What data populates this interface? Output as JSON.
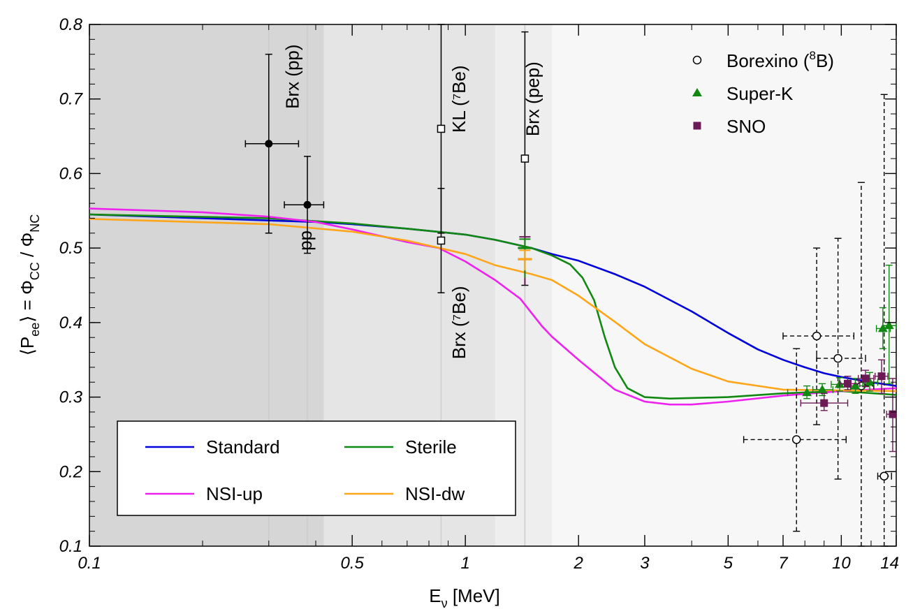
{
  "chart_data": {
    "type": "line",
    "xlabel": "E",
    "xlabel_sub": "ν",
    "xlabel_unit": " [MeV]",
    "ylabel_parts": [
      "⟨P",
      "ee",
      "⟩ = Φ",
      "CC",
      " / Φ",
      "NC"
    ],
    "xscale": "log",
    "xlim": [
      0.1,
      14
    ],
    "ylim": [
      0.1,
      0.8
    ],
    "x_ticks": [
      0.1,
      0.5,
      1,
      2,
      3,
      5,
      7,
      10,
      14
    ],
    "x_tick_labels": [
      "0.1",
      "0.5",
      "1",
      "2",
      "3",
      "5",
      "7",
      "10",
      "14"
    ],
    "y_ticks": [
      0.1,
      0.2,
      0.3,
      0.4,
      0.5,
      0.6,
      0.7,
      0.8
    ],
    "y_tick_labels": [
      "0.1",
      "0.2",
      "0.3",
      "0.4",
      "0.5",
      "0.6",
      "0.7",
      "0.8"
    ],
    "shaded_bands": [
      {
        "x": [
          0.1,
          0.42
        ],
        "color": "#d6d6d6"
      },
      {
        "x": [
          0.1,
          1.2
        ],
        "color": "#e5e5e5"
      },
      {
        "x": [
          0.1,
          1.7
        ],
        "color": "#eeeeee"
      },
      {
        "x": [
          0.1,
          14
        ],
        "color": "#f7f7f7"
      }
    ],
    "series": [
      {
        "name": "Standard",
        "color": "#0000dd",
        "x": [
          0.1,
          0.2,
          0.3,
          0.4,
          0.5,
          0.7,
          1.0,
          1.2,
          1.5,
          1.7,
          2.0,
          2.5,
          3.0,
          4.0,
          5.0,
          6.0,
          7.0,
          8.0,
          9.0,
          10.0,
          12.0,
          14.0
        ],
        "y": [
          0.545,
          0.54,
          0.537,
          0.535,
          0.532,
          0.526,
          0.518,
          0.511,
          0.5,
          0.492,
          0.483,
          0.465,
          0.448,
          0.415,
          0.386,
          0.364,
          0.35,
          0.34,
          0.332,
          0.327,
          0.32,
          0.315
        ]
      },
      {
        "name": "Sterile",
        "color": "#118811",
        "x": [
          0.1,
          0.3,
          0.5,
          0.7,
          1.0,
          1.2,
          1.5,
          1.7,
          1.9,
          2.05,
          2.2,
          2.35,
          2.5,
          2.7,
          3.0,
          3.5,
          5.0,
          7.0,
          10.0,
          14.0
        ],
        "y": [
          0.545,
          0.54,
          0.533,
          0.526,
          0.518,
          0.511,
          0.5,
          0.49,
          0.478,
          0.46,
          0.43,
          0.38,
          0.34,
          0.312,
          0.3,
          0.298,
          0.3,
          0.305,
          0.308,
          0.303
        ]
      },
      {
        "name": "NSI-up",
        "color": "#ee22ee",
        "x": [
          0.1,
          0.2,
          0.3,
          0.4,
          0.5,
          0.7,
          0.85,
          1.0,
          1.2,
          1.4,
          1.6,
          1.7,
          2.0,
          2.5,
          3.0,
          3.5,
          4.0,
          5.0,
          7.0,
          10.0,
          14.0
        ],
        "y": [
          0.553,
          0.548,
          0.542,
          0.535,
          0.525,
          0.508,
          0.5,
          0.482,
          0.457,
          0.432,
          0.395,
          0.381,
          0.35,
          0.31,
          0.294,
          0.29,
          0.29,
          0.294,
          0.302,
          0.308,
          0.312
        ]
      },
      {
        "name": "NSI-dw",
        "color": "#ffa51a",
        "x": [
          0.1,
          0.3,
          0.5,
          0.7,
          1.0,
          1.2,
          1.5,
          1.7,
          2.0,
          2.5,
          3.0,
          4.0,
          5.0,
          7.0,
          10.0,
          14.0
        ],
        "y": [
          0.539,
          0.532,
          0.522,
          0.51,
          0.492,
          0.477,
          0.465,
          0.457,
          0.436,
          0.401,
          0.371,
          0.338,
          0.321,
          0.31,
          0.309,
          0.308
        ]
      }
    ],
    "points": [
      {
        "x": 0.3,
        "y": 0.64,
        "yerr": [
          0.12,
          0.12
        ],
        "xerr": [
          0.04,
          0.06
        ],
        "marker": "filled-circle",
        "color": "#000000"
      },
      {
        "x": 0.38,
        "y": 0.558,
        "yerr": [
          0.065,
          0.065
        ],
        "xerr": [
          0.05,
          0.04
        ],
        "marker": "filled-circle",
        "color": "#000000"
      },
      {
        "x": 0.862,
        "y": 0.66,
        "yerr": [
          0.14,
          0.14
        ],
        "marker": "open-square",
        "color": "#000000"
      },
      {
        "x": 0.862,
        "y": 0.51,
        "yerr": [
          0.07,
          0.07
        ],
        "marker": "open-square",
        "color": "#000000"
      },
      {
        "x": 1.44,
        "y": 0.62,
        "yerr": [
          0.17,
          0.17
        ],
        "marker": "open-square",
        "color": "#000000"
      }
    ],
    "range_markers": [
      {
        "x": 1.44,
        "y": [
          0.515,
          0.45
        ],
        "y_center": 0.485,
        "color": "#6b1a55"
      },
      {
        "x": 1.44,
        "y": [
          0.512,
          0.46
        ],
        "y_center": 0.5,
        "color": "#118811"
      },
      {
        "x": 1.44,
        "y": [
          0.497,
          0.47
        ],
        "y_center": 0.485,
        "color": "#ffa51a"
      }
    ],
    "band_labels": [
      {
        "text": "Brx (pp)",
        "x": 0.36,
        "y": 0.73,
        "rotate": -90
      },
      {
        "text": "pp",
        "x": 0.39,
        "y": 0.51,
        "rotate": -90
      },
      {
        "text": "KL (⁷Be)",
        "x": 1.0,
        "y": 0.7,
        "rotate": -90
      },
      {
        "text": "Brx (⁷Be)",
        "x": 1.0,
        "y": 0.4,
        "rotate": -90
      },
      {
        "text": "Brx (pep)",
        "x": 1.57,
        "y": 0.7,
        "rotate": -90
      }
    ],
    "datasets": [
      {
        "name": "Borexino (",
        "name_sup": "8",
        "name_tail": "B)",
        "marker": "open-circle",
        "color": "#000000",
        "line": "dashed",
        "points": [
          {
            "x": 7.6,
            "y": 0.243,
            "xlo": 5.5,
            "xhi": 10.3,
            "ylo": 0.12,
            "yhi": 0.365
          },
          {
            "x": 8.6,
            "y": 0.382,
            "xlo": 7.0,
            "xhi": 10.8,
            "ylo": 0.263,
            "yhi": 0.5
          },
          {
            "x": 9.8,
            "y": 0.352,
            "xlo": 8.6,
            "xhi": 11.6,
            "ylo": 0.19,
            "yhi": 0.513
          },
          {
            "x": 11.3,
            "y": 0.315,
            "xlo": 10.6,
            "xhi": 12.2,
            "ylo": 0.1,
            "yhi": 0.588
          },
          {
            "x": 13.0,
            "y": 0.194,
            "xlo": 12.5,
            "xhi": 13.6,
            "ylo": 0.1,
            "yhi": 0.706
          }
        ]
      },
      {
        "name": "Super-K",
        "marker": "filled-triangle",
        "color": "#118811",
        "line": "solid",
        "points": [
          {
            "x": 8.1,
            "y": 0.306,
            "xlo": 7.2,
            "xhi": 8.9,
            "ylo": 0.298,
            "yhi": 0.315
          },
          {
            "x": 8.9,
            "y": 0.31,
            "xlo": 8.4,
            "xhi": 9.5,
            "ylo": 0.302,
            "yhi": 0.318
          },
          {
            "x": 9.9,
            "y": 0.317,
            "xlo": 9.4,
            "xhi": 10.5,
            "ylo": 0.308,
            "yhi": 0.326
          },
          {
            "x": 10.9,
            "y": 0.315,
            "xlo": 10.4,
            "xhi": 11.5,
            "ylo": 0.305,
            "yhi": 0.325
          },
          {
            "x": 11.9,
            "y": 0.32,
            "xlo": 11.4,
            "xhi": 12.5,
            "ylo": 0.308,
            "yhi": 0.333
          },
          {
            "x": 12.9,
            "y": 0.392,
            "xlo": 12.4,
            "xhi": 13.5,
            "ylo": 0.365,
            "yhi": 0.42
          },
          {
            "x": 13.4,
            "y": 0.396,
            "xlo": 12.9,
            "xhi": 14.0,
            "ylo": 0.318,
            "yhi": 0.477
          }
        ]
      },
      {
        "name": "SNO",
        "marker": "filled-square",
        "color": "#6b1a55",
        "line": "solid",
        "points": [
          {
            "x": 9.0,
            "y": 0.292,
            "xlo": 7.8,
            "xhi": 10.4,
            "ylo": 0.282,
            "yhi": 0.305
          },
          {
            "x": 10.4,
            "y": 0.318,
            "xlo": 9.9,
            "xhi": 11.2,
            "ylo": 0.31,
            "yhi": 0.328
          },
          {
            "x": 11.6,
            "y": 0.325,
            "xlo": 11.1,
            "xhi": 12.2,
            "ylo": 0.314,
            "yhi": 0.336
          },
          {
            "x": 12.8,
            "y": 0.328,
            "xlo": 12.3,
            "xhi": 13.3,
            "ylo": 0.305,
            "yhi": 0.35
          },
          {
            "x": 13.7,
            "y": 0.277,
            "xlo": 13.2,
            "xhi": 14.0,
            "ylo": 0.227,
            "yhi": 0.325
          }
        ]
      }
    ],
    "legend_lines_location": "bottom-left",
    "legend_points_location": "top-right"
  }
}
